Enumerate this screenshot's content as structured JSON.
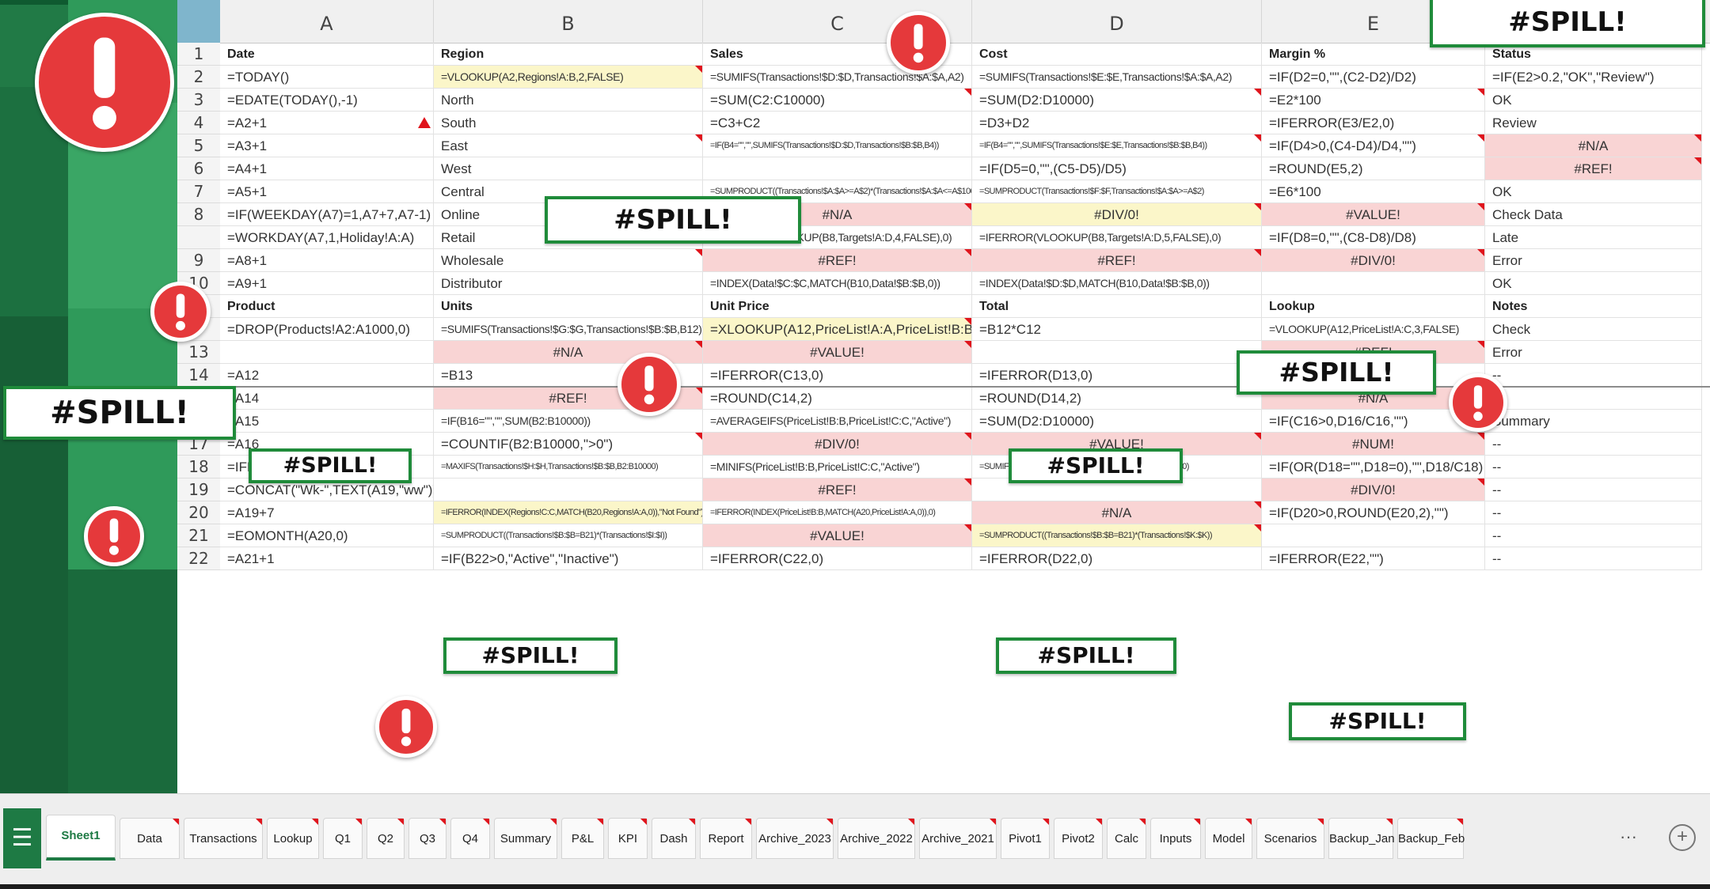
{
  "columns": [
    "A",
    "B",
    "C",
    "D",
    "E",
    ""
  ],
  "rows": [
    {
      "n": "1",
      "cells": [
        {
          "t": "Date",
          "s": "hdr"
        },
        {
          "t": "Region",
          "s": "hdr"
        },
        {
          "t": "Sales",
          "s": "hdr"
        },
        {
          "t": "Cost",
          "s": "hdr"
        },
        {
          "t": "Margin %",
          "s": "hdr"
        },
        {
          "t": "Status",
          "s": "hdr"
        }
      ]
    },
    {
      "n": "2",
      "cells": [
        {
          "t": "=TODAY()"
        },
        {
          "t": "=VLOOKUP(A2,Regions!A:B,2,FALSE)",
          "s": "warn small",
          "m": 1
        },
        {
          "t": "=SUMIFS(Transactions!$D:$D,Transactions!$A:$A,A2)",
          "s": "small"
        },
        {
          "t": "=SUMIFS(Transactions!$E:$E,Transactions!$A:$A,A2)",
          "s": "small"
        },
        {
          "t": "=IF(D2=0,\"\",(C2-D2)/D2)"
        },
        {
          "t": "=IF(E2>0.2,\"OK\",\"Review\")"
        }
      ]
    },
    {
      "n": "3",
      "cells": [
        {
          "t": "=EDATE(TODAY(),-1)"
        },
        {
          "t": "North"
        },
        {
          "t": "=SUM(C2:C10000)",
          "m": 1
        },
        {
          "t": "=SUM(D2:D10000)",
          "m": 1
        },
        {
          "t": "=E2*100",
          "m": 1
        },
        {
          "t": "OK"
        }
      ]
    },
    {
      "n": "4",
      "cells": [
        {
          "t": "=A2+1"
        },
        {
          "t": "South"
        },
        {
          "t": "=C3+C2"
        },
        {
          "t": "=D3+D2"
        },
        {
          "t": "=IFERROR(E3/E2,0)"
        },
        {
          "t": "Review"
        }
      ]
    },
    {
      "n": "5",
      "cells": [
        {
          "t": "=A3+1"
        },
        {
          "t": "East",
          "m": 1
        },
        {
          "t": "=IF(B4=\"\",\"\",SUMIFS(Transactions!$D:$D,Transactions!$B:$B,B4))",
          "s": "tiny"
        },
        {
          "t": "=IF(B4=\"\",\"\",SUMIFS(Transactions!$E:$E,Transactions!$B:$B,B4))",
          "s": "tiny",
          "m": 1
        },
        {
          "t": "=IF(D4>0,(C4-D4)/D4,\"\")",
          "m": 1
        },
        {
          "t": "#N/A",
          "s": "err",
          "m": 1
        }
      ]
    },
    {
      "n": "6",
      "cells": [
        {
          "t": "=A4+1"
        },
        {
          "t": "West"
        },
        {
          "t": ""
        },
        {
          "t": "=IF(D5=0,\"\",(C5-D5)/D5)"
        },
        {
          "t": "=ROUND(E5,2)"
        },
        {
          "t": "#REF!",
          "s": "err",
          "m": 1
        }
      ]
    },
    {
      "n": "7",
      "cells": [
        {
          "t": "=A5+1"
        },
        {
          "t": "Central"
        },
        {
          "t": "=SUMPRODUCT((Transactions!$A:$A>=A$2)*(Transactions!$A:$A<=A$10000))",
          "s": "tiny"
        },
        {
          "t": "=SUMPRODUCT(Transactions!$F:$F,Transactions!$A:$A>=A$2)",
          "s": "tiny"
        },
        {
          "t": "=E6*100"
        },
        {
          "t": "OK"
        }
      ]
    },
    {
      "n": "8",
      "cells": [
        {
          "t": "=IF(WEEKDAY(A7)=1,A7+7,A7-1)"
        },
        {
          "t": "Online"
        },
        {
          "t": "#N/A",
          "s": "err",
          "m": 1
        },
        {
          "t": "#DIV/0!",
          "s": "warn center",
          "m": 1
        },
        {
          "t": "#VALUE!",
          "s": "err",
          "m": 1
        },
        {
          "t": "Check Data"
        }
      ]
    },
    {
      "n": "",
      "cells": [
        {
          "t": "=WORKDAY(A7,1,Holiday!A:A)"
        },
        {
          "t": "Retail"
        },
        {
          "t": "=IFERROR(VLOOKUP(B8,Targets!A:D,4,FALSE),0)",
          "s": "small"
        },
        {
          "t": "=IFERROR(VLOOKUP(B8,Targets!A:D,5,FALSE),0)",
          "s": "small"
        },
        {
          "t": "=IF(D8=0,\"\",(C8-D8)/D8)"
        },
        {
          "t": "Late"
        }
      ]
    },
    {
      "n": "9",
      "cells": [
        {
          "t": "=A8+1"
        },
        {
          "t": "Wholesale",
          "m": 1
        },
        {
          "t": "#REF!",
          "s": "err",
          "m": 1
        },
        {
          "t": "#REF!",
          "s": "err",
          "m": 1
        },
        {
          "t": "#DIV/0!",
          "s": "err",
          "m": 1
        },
        {
          "t": "Error"
        }
      ]
    },
    {
      "n": "10",
      "cells": [
        {
          "t": "=A9+1"
        },
        {
          "t": "Distributor"
        },
        {
          "t": "=INDEX(Data!$C:$C,MATCH(B10,Data!$B:$B,0))",
          "s": "small"
        },
        {
          "t": "=INDEX(Data!$D:$D,MATCH(B10,Data!$B:$B,0))",
          "s": "small"
        },
        {
          "t": ""
        },
        {
          "t": "OK"
        }
      ]
    },
    {
      "n": "",
      "cells": [
        {
          "t": "Product",
          "s": "hdr"
        },
        {
          "t": "Units",
          "s": "hdr"
        },
        {
          "t": "Unit Price",
          "s": "hdr"
        },
        {
          "t": "Total",
          "s": "hdr"
        },
        {
          "t": "Lookup",
          "s": "hdr"
        },
        {
          "t": "Notes",
          "s": "hdr"
        }
      ]
    },
    {
      "n": "",
      "cells": [
        {
          "t": "=DROP(Products!A2:A1000,0)"
        },
        {
          "t": "=SUMIFS(Transactions!$G:$G,Transactions!$B:$B,B12)",
          "s": "small"
        },
        {
          "t": "=XLOOKUP(A12,PriceList!A:A,PriceList!B:B)",
          "s": "warn",
          "m": 1
        },
        {
          "t": "=B12*C12"
        },
        {
          "t": "=VLOOKUP(A12,PriceList!A:C,3,FALSE)",
          "s": "small"
        },
        {
          "t": "Check"
        }
      ]
    },
    {
      "n": "13",
      "cells": [
        {
          "t": ""
        },
        {
          "t": "#N/A",
          "s": "err",
          "m": 1
        },
        {
          "t": "#VALUE!",
          "s": "err",
          "m": 1
        },
        {
          "t": ""
        },
        {
          "t": "#REF!",
          "s": "err",
          "m": 1
        },
        {
          "t": "Error"
        }
      ]
    },
    {
      "n": "14",
      "cells": [
        {
          "t": "=A12"
        },
        {
          "t": "=B13"
        },
        {
          "t": "=IFERROR(C13,0)"
        },
        {
          "t": "=IFERROR(D13,0)"
        },
        {
          "t": "=IFERROR(E13,\"\")"
        },
        {
          "t": "--"
        }
      ]
    },
    {
      "n": "15",
      "cells": [
        {
          "t": "=A14"
        },
        {
          "t": "#REF!",
          "s": "err",
          "m": 1
        },
        {
          "t": "=ROUND(C14,2)"
        },
        {
          "t": "=ROUND(D14,2)"
        },
        {
          "t": "#N/A",
          "s": "err",
          "m": 1
        },
        {
          "t": "--"
        }
      ]
    },
    {
      "n": "16",
      "cells": [
        {
          "t": "=A15"
        },
        {
          "t": "=IF(B16=\"\",\"\",SUM(B2:B10000))",
          "s": "small"
        },
        {
          "t": "=AVERAGEIFS(PriceList!B:B,PriceList!C:C,\"Active\")",
          "s": "small"
        },
        {
          "t": "=SUM(D2:D10000)"
        },
        {
          "t": "=IF(C16>0,D16/C16,\"\")"
        },
        {
          "t": "Summary"
        }
      ]
    },
    {
      "n": "17",
      "cells": [
        {
          "t": "=A16"
        },
        {
          "t": "=COUNTIF(B2:B10000,\">0\")",
          "m": 1
        },
        {
          "t": "#DIV/0!",
          "s": "err",
          "m": 1
        },
        {
          "t": "#VALUE!",
          "s": "err",
          "m": 1
        },
        {
          "t": "#NUM!",
          "s": "err",
          "m": 1
        },
        {
          "t": "--"
        }
      ]
    },
    {
      "n": "18",
      "cells": [
        {
          "t": "=IFERROR(A17,\"No Date\")"
        },
        {
          "t": "=MAXIFS(Transactions!$H:$H,Transactions!$B:$B,B2:B10000)",
          "s": "tiny"
        },
        {
          "t": "=MINIFS(PriceList!B:B,PriceList!C:C,\"Active\")",
          "s": "small"
        },
        {
          "t": "=SUMIFS(Transactions!$I:$I,Transactions!$B:$B,B2:B10000)",
          "s": "tiny"
        },
        {
          "t": "=IF(OR(D18=\"\",D18=0),\"\",D18/C18)"
        },
        {
          "t": "--"
        }
      ]
    },
    {
      "n": "19",
      "cells": [
        {
          "t": "=CONCAT(\"Wk-\",TEXT(A19,\"ww\"))"
        },
        {
          "t": ""
        },
        {
          "t": "#REF!",
          "s": "err",
          "m": 1
        },
        {
          "t": ""
        },
        {
          "t": "#DIV/0!",
          "s": "err",
          "m": 1
        },
        {
          "t": "--"
        }
      ]
    },
    {
      "n": "20",
      "cells": [
        {
          "t": "=A19+7"
        },
        {
          "t": "=IFERROR(INDEX(Regions!C:C,MATCH(B20,Regions!A:A,0)),\"Not Found\")",
          "s": "warn tiny"
        },
        {
          "t": "=IFERROR(INDEX(PriceList!B:B,MATCH(A20,PriceList!A:A,0)),0)",
          "s": "tiny"
        },
        {
          "t": "#N/A",
          "s": "err",
          "m": 1
        },
        {
          "t": "=IF(D20>0,ROUND(E20,2),\"\")"
        },
        {
          "t": "--"
        }
      ]
    },
    {
      "n": "21",
      "cells": [
        {
          "t": "=EOMONTH(A20,0)"
        },
        {
          "t": "=SUMPRODUCT((Transactions!$B:$B=B21)*(Transactions!$I:$I))",
          "s": "tiny"
        },
        {
          "t": "#VALUE!",
          "s": "err",
          "m": 1
        },
        {
          "t": "=SUMPRODUCT((Transactions!$B:$B=B21)*(Transactions!$K:$K))",
          "s": "warn tiny",
          "m": 1
        },
        {
          "t": ""
        },
        {
          "t": "--"
        }
      ]
    },
    {
      "n": "22",
      "cells": [
        {
          "t": "=A21+1"
        },
        {
          "t": "=IF(B22>0,\"Active\",\"Inactive\")"
        },
        {
          "t": "=IFERROR(C22,0)"
        },
        {
          "t": "=IFERROR(D22,0)"
        },
        {
          "t": "=IFERROR(E22,\"\")"
        },
        {
          "t": "--"
        }
      ]
    }
  ],
  "spill_label": "#SPILL!",
  "tabs": [
    "Sheet1",
    "Data",
    "Transactions",
    "Lookup",
    "Q1",
    "Q2",
    "Q3",
    "Q4",
    "Summary",
    "P&L",
    "KPI",
    "Dash",
    "Report",
    "Archive_2023",
    "Archive_2022",
    "Archive_2021",
    "Pivot1",
    "Pivot2",
    "Calc",
    "Inputs",
    "Model",
    "Scenarios",
    "Backup_Jan",
    "Backup_Feb"
  ],
  "active_tab": "Sheet1",
  "more_tabs": "···",
  "add_sheet": "+",
  "menu_icon": "☰",
  "colors": {
    "accent": "#1e7a44",
    "error_fill": "#f9d4d4",
    "warning_fill": "#fbf6c9",
    "alert_red": "#e5393b",
    "spill_border": "#1f8b3a"
  }
}
